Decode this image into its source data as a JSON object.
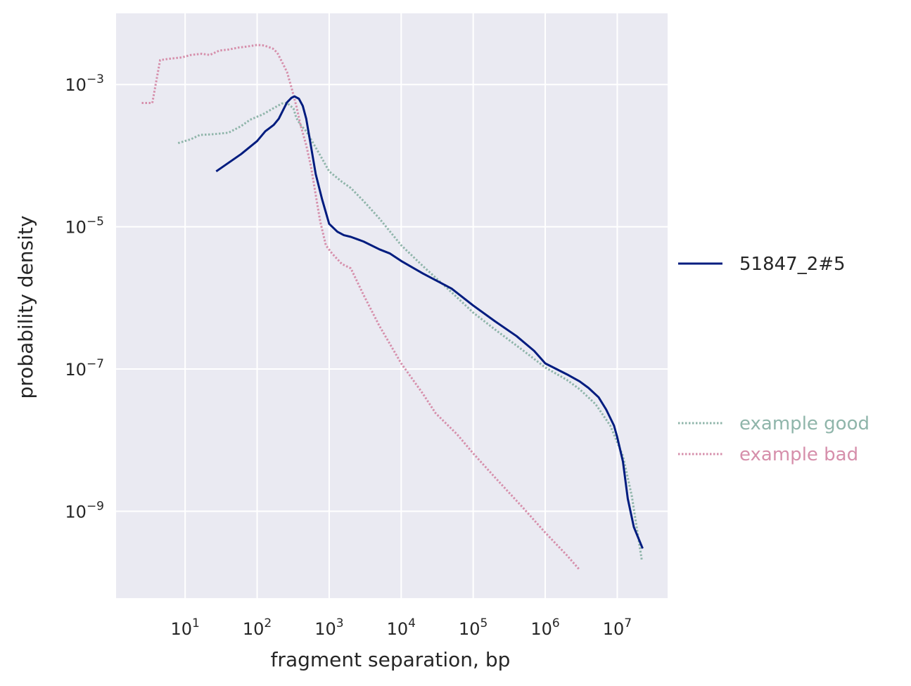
{
  "chart_data": {
    "type": "line",
    "xlabel": "fragment separation, bp",
    "ylabel": "probability density",
    "xscale": "log",
    "yscale": "log",
    "xlim": [
      1.1,
      50000000
    ],
    "ylim": [
      6e-11,
      0.01
    ],
    "grid": true,
    "background": "#eaeaf2",
    "gridColor": "#ffffff",
    "xticks": [
      {
        "value": 10,
        "base": "10",
        "exp": "1"
      },
      {
        "value": 100,
        "base": "10",
        "exp": "2"
      },
      {
        "value": 1000,
        "base": "10",
        "exp": "3"
      },
      {
        "value": 10000,
        "base": "10",
        "exp": "4"
      },
      {
        "value": 100000,
        "base": "10",
        "exp": "5"
      },
      {
        "value": 1000000,
        "base": "10",
        "exp": "6"
      },
      {
        "value": 10000000,
        "base": "10",
        "exp": "7"
      }
    ],
    "yticks": [
      {
        "value": 0.001,
        "base": "10",
        "exp": "−3"
      },
      {
        "value": 1e-05,
        "base": "10",
        "exp": "−5"
      },
      {
        "value": 1e-07,
        "base": "10",
        "exp": "−7"
      },
      {
        "value": 1e-09,
        "base": "10",
        "exp": "−9"
      }
    ],
    "legend_placement": "right",
    "series": [
      {
        "name": "51847_2#5",
        "color": "#001c7f",
        "style": "solid",
        "x": [
          27,
          60,
          100,
          130,
          170,
          200,
          230,
          260,
          300,
          330,
          380,
          430,
          480,
          550,
          650,
          800,
          1000,
          1300,
          1600,
          2000,
          3000,
          5000,
          7000,
          10000,
          20000,
          50000,
          100000,
          200000,
          400000,
          700000,
          1000000,
          2000000,
          3000000,
          4000000,
          5500000,
          7000000,
          9000000,
          10000000,
          12000000,
          14000000,
          17000000,
          22500000
        ],
        "y": [
          6e-05,
          0.000105,
          0.00016,
          0.00022,
          0.00027,
          0.00033,
          0.00044,
          0.00056,
          0.00065,
          0.00068,
          0.00063,
          0.0005,
          0.00033,
          0.00015,
          5.5e-05,
          2.4e-05,
          1.1e-05,
          8.5e-06,
          7.6e-06,
          7.2e-06,
          6.2e-06,
          4.8e-06,
          4.2e-06,
          3.3e-06,
          2.2e-06,
          1.35e-06,
          7.8e-07,
          4.7e-07,
          2.9e-07,
          1.8e-07,
          1.2e-07,
          8.4e-08,
          6.7e-08,
          5.4e-08,
          4e-08,
          2.7e-08,
          1.6e-08,
          1.1e-08,
          5e-09,
          1.5e-09,
          6e-10,
          3e-10
        ]
      },
      {
        "name": "example good",
        "color": "#8fb5aa",
        "style": "dotted",
        "x": [
          8,
          12,
          16,
          25,
          40,
          60,
          80,
          120,
          160,
          220,
          260,
          290,
          320,
          350,
          400,
          480,
          600,
          800,
          1000,
          1500,
          2000,
          3000,
          5000,
          10000,
          20000,
          50000,
          100000,
          200000,
          500000,
          1000000,
          2000000,
          3000000,
          5000000,
          8000000,
          12000000,
          16000000,
          22000000
        ],
        "y": [
          0.00015,
          0.00017,
          0.000195,
          0.0002,
          0.00021,
          0.00026,
          0.00032,
          0.00038,
          0.00045,
          0.00054,
          0.00055,
          0.0005,
          0.00046,
          0.00034,
          0.00027,
          0.00022,
          0.00015,
          9e-05,
          6e-05,
          4.3e-05,
          3.5e-05,
          2.3e-05,
          1.3e-05,
          5.5e-06,
          2.8e-06,
          1.2e-06,
          6.2e-07,
          3.6e-07,
          1.8e-07,
          1.05e-07,
          7e-08,
          5.2e-08,
          3.2e-08,
          1.6e-08,
          6e-09,
          1.6e-09,
          2e-10
        ]
      },
      {
        "name": "example bad",
        "color": "#d68fab",
        "style": "dotted",
        "x": [
          2.5,
          3.5,
          4.5,
          6,
          9,
          12,
          17,
          22,
          30,
          40,
          55,
          70,
          85,
          100,
          120,
          140,
          165,
          190,
          220,
          260,
          300,
          350,
          400,
          480,
          560,
          650,
          750,
          900,
          1100,
          1500,
          2000,
          3000,
          5000,
          10000,
          20000,
          30000,
          60000,
          100000,
          200000,
          500000,
          1000000,
          2000000,
          3000000
        ],
        "y": [
          0.00055,
          0.00055,
          0.0022,
          0.0023,
          0.0024,
          0.0026,
          0.0027,
          0.0026,
          0.003,
          0.0031,
          0.0033,
          0.0034,
          0.0035,
          0.0036,
          0.00355,
          0.0034,
          0.0032,
          0.0028,
          0.0021,
          0.0015,
          0.0009,
          0.0005,
          0.00027,
          0.00014,
          7e-05,
          2.8e-05,
          1.2e-05,
          5.5e-06,
          4.2e-06,
          3e-06,
          2.6e-06,
          1.1e-06,
          4e-07,
          1.2e-07,
          4.5e-08,
          2.4e-08,
          1.2e-08,
          6.5e-09,
          3e-09,
          1.1e-09,
          5e-10,
          2.4e-10,
          1.5e-10
        ]
      }
    ],
    "legend": [
      {
        "label": "51847_2#5",
        "color": "#001c7f",
        "textColor": "#262626",
        "style": "solid"
      },
      {
        "label": "example good",
        "color": "#8fb5aa",
        "textColor": "#8fb5aa",
        "style": "dotted"
      },
      {
        "label": "example bad",
        "color": "#d68fab",
        "textColor": "#d68fab",
        "style": "dotted"
      }
    ]
  }
}
